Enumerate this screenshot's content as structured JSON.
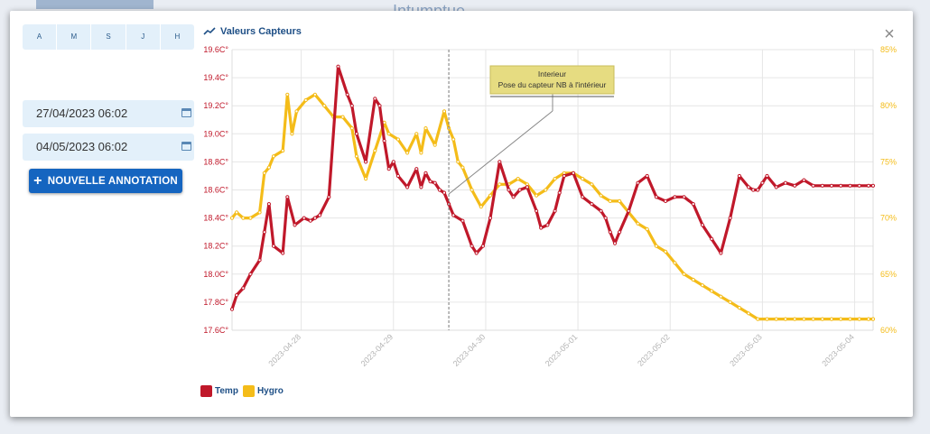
{
  "window": {
    "close_label": "×"
  },
  "periods": [
    "A",
    "M",
    "S",
    "J",
    "H"
  ],
  "dates": {
    "start": "27/04/2023 06:02",
    "end": "04/05/2023 06:02"
  },
  "annotation_button": {
    "icon": "+",
    "label": "NOUVELLE ANNOTATION"
  },
  "colors": {
    "temp": "#c0182a",
    "hygro": "#f4bc19",
    "title": "#1e4f86"
  },
  "chart_data": {
    "type": "line",
    "title": "Valeurs Capteurs",
    "x_ticks": [
      "2023-04-28",
      "2023-04-29",
      "2023-04-30",
      "2023-05-01",
      "2023-05-02",
      "2023-05-03",
      "2023-05-04"
    ],
    "x_tick_pos": [
      0.75,
      1.75,
      2.75,
      3.75,
      4.75,
      5.75,
      6.75
    ],
    "xlim": [
      0,
      6.95
    ],
    "y_left": {
      "ticks": [
        "17.6C°",
        "17.8C°",
        "18.0C°",
        "18.2C°",
        "18.4C°",
        "18.6C°",
        "18.8C°",
        "19.0C°",
        "19.2C°",
        "19.4C°",
        "19.6C°"
      ],
      "ylim": [
        17.6,
        19.6
      ]
    },
    "y_right": {
      "ticks": [
        "60%",
        "65%",
        "70%",
        "75%",
        "80%",
        "85%"
      ],
      "ylim": [
        60,
        85
      ]
    },
    "annotation": {
      "x": 2.35,
      "title": "Interieur",
      "text": "Pose du capteur NB à l'intérieur"
    },
    "series": [
      {
        "name": "Temp",
        "axis": "left",
        "color": "#c0182a",
        "x": [
          0,
          0.05,
          0.12,
          0.2,
          0.3,
          0.35,
          0.4,
          0.45,
          0.55,
          0.6,
          0.68,
          0.78,
          0.85,
          0.9,
          0.95,
          1.05,
          1.15,
          1.25,
          1.3,
          1.35,
          1.45,
          1.55,
          1.6,
          1.65,
          1.7,
          1.75,
          1.8,
          1.9,
          2.0,
          2.05,
          2.1,
          2.15,
          2.2,
          2.25,
          2.3,
          2.35,
          2.4,
          2.5,
          2.6,
          2.65,
          2.72,
          2.8,
          2.9,
          3.0,
          3.05,
          3.12,
          3.2,
          3.3,
          3.35,
          3.42,
          3.5,
          3.55,
          3.6,
          3.7,
          3.8,
          3.9,
          4.0,
          4.05,
          4.1,
          4.15,
          4.2,
          4.3,
          4.4,
          4.5,
          4.6,
          4.7,
          4.8,
          4.9,
          5.0,
          5.1,
          5.2,
          5.3,
          5.4,
          5.5,
          5.6,
          5.65,
          5.7,
          5.75,
          5.8,
          5.9,
          6.0,
          6.1,
          6.2,
          6.3,
          6.4,
          6.5,
          6.6,
          6.7,
          6.8,
          6.9,
          6.95
        ],
        "y": [
          17.75,
          17.85,
          17.9,
          18.0,
          18.1,
          18.3,
          18.5,
          18.2,
          18.15,
          18.55,
          18.35,
          18.4,
          18.38,
          18.4,
          18.42,
          18.55,
          19.48,
          19.28,
          19.2,
          19.0,
          18.8,
          19.25,
          19.2,
          18.95,
          18.75,
          18.8,
          18.7,
          18.62,
          18.75,
          18.62,
          18.72,
          18.66,
          18.65,
          18.6,
          18.58,
          18.5,
          18.42,
          18.38,
          18.2,
          18.15,
          18.2,
          18.4,
          18.8,
          18.6,
          18.55,
          18.6,
          18.62,
          18.45,
          18.33,
          18.35,
          18.45,
          18.58,
          18.7,
          18.72,
          18.55,
          18.5,
          18.45,
          18.4,
          18.3,
          18.22,
          18.3,
          18.45,
          18.65,
          18.7,
          18.55,
          18.52,
          18.55,
          18.55,
          18.5,
          18.35,
          18.25,
          18.15,
          18.4,
          18.7,
          18.62,
          18.6,
          18.6,
          18.65,
          18.7,
          18.62,
          18.65,
          18.63,
          18.67,
          18.63,
          18.63,
          18.63,
          18.63,
          18.63,
          18.63,
          18.63,
          18.63
        ]
      },
      {
        "name": "Hygro",
        "axis": "right",
        "color": "#f4bc19",
        "x": [
          0,
          0.05,
          0.12,
          0.2,
          0.3,
          0.35,
          0.4,
          0.45,
          0.55,
          0.6,
          0.65,
          0.7,
          0.8,
          0.9,
          1.0,
          1.1,
          1.2,
          1.3,
          1.35,
          1.45,
          1.55,
          1.65,
          1.7,
          1.8,
          1.9,
          2.0,
          2.05,
          2.1,
          2.2,
          2.3,
          2.35,
          2.4,
          2.45,
          2.5,
          2.6,
          2.7,
          2.8,
          2.9,
          3.0,
          3.1,
          3.2,
          3.3,
          3.4,
          3.5,
          3.6,
          3.7,
          3.8,
          3.9,
          4.0,
          4.1,
          4.2,
          4.3,
          4.4,
          4.5,
          4.6,
          4.7,
          4.8,
          4.9,
          5.0,
          5.1,
          5.2,
          5.3,
          5.4,
          5.5,
          5.6,
          5.7,
          5.8,
          5.9,
          6.0,
          6.1,
          6.2,
          6.3,
          6.4,
          6.5,
          6.6,
          6.7,
          6.8,
          6.9,
          6.95
        ],
        "y": [
          70,
          70.5,
          70,
          70,
          70.5,
          74,
          74.5,
          75.5,
          76,
          81,
          77.5,
          79.5,
          80.5,
          81,
          80,
          79,
          79,
          78,
          75.5,
          73.5,
          76,
          78.5,
          77.5,
          77,
          75.8,
          77.5,
          75.8,
          78,
          76.5,
          79.5,
          78,
          77,
          75,
          74.5,
          72.5,
          71,
          72,
          73,
          73,
          73.5,
          73,
          72,
          72.5,
          73.5,
          74,
          74,
          73.5,
          73,
          72,
          71.5,
          71.5,
          70.5,
          69.5,
          69,
          67.5,
          67,
          66,
          65,
          64.5,
          64,
          63.5,
          63,
          62.5,
          62,
          61.5,
          61,
          61,
          61,
          61,
          61,
          61,
          61,
          61,
          61,
          61,
          61,
          61,
          61,
          61
        ]
      }
    ]
  },
  "legend": [
    {
      "label": "Temp",
      "color": "#c0182a"
    },
    {
      "label": "Hygro",
      "color": "#f4bc19"
    }
  ]
}
